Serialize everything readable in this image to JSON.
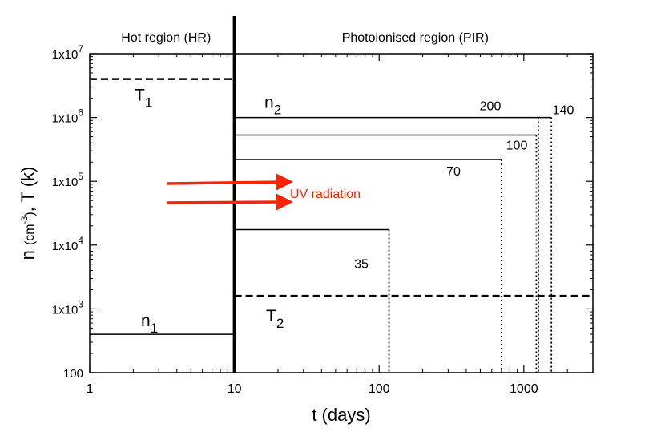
{
  "chart_data": {
    "type": "line",
    "x_scale": "log",
    "y_scale": "log",
    "xlim": [
      1,
      3000
    ],
    "ylim": [
      100,
      10000000
    ],
    "xlabel": "t (days)",
    "ylabel": {
      "pre": "n ",
      "unit_open": "(cm",
      "unit_exp": "-3",
      "unit_close": ")",
      "post": ", T (k)"
    },
    "x_ticks": [
      {
        "value": 1,
        "label": "1"
      },
      {
        "value": 10,
        "label": "10"
      },
      {
        "value": 100,
        "label": "100"
      },
      {
        "value": 1000,
        "label": "1000"
      }
    ],
    "y_ticks": [
      {
        "value": 100,
        "base": "100",
        "exp": ""
      },
      {
        "value": 1000,
        "base": "1x10",
        "exp": "3"
      },
      {
        "value": 10000,
        "base": "1x10",
        "exp": "4"
      },
      {
        "value": 100000,
        "base": "1x10",
        "exp": "5"
      },
      {
        "value": 1000000,
        "base": "1x10",
        "exp": "6"
      },
      {
        "value": 10000000,
        "base": "1x10",
        "exp": "7"
      }
    ],
    "region_boundary_t": 10,
    "regions": [
      {
        "label": "Hot region (HR)"
      },
      {
        "label": "Photoionised region (PIR)"
      }
    ],
    "temperatures": [
      {
        "name": "T_1",
        "base": "T",
        "sub": "1",
        "value": 4000000,
        "t_start": 1,
        "t_end": 10
      },
      {
        "name": "T_2",
        "base": "T",
        "sub": "2",
        "value": 1600,
        "t_start": 10,
        "t_end": 3000
      }
    ],
    "n1": {
      "base": "n",
      "sub": "1",
      "value": 400,
      "t_start": 1,
      "t_end": 10
    },
    "n2_label": {
      "base": "n",
      "sub": "2"
    },
    "n2_series": [
      {
        "label": "200",
        "value": 1000000,
        "t_end": 1260
      },
      {
        "label": "140",
        "value": 1000000,
        "t_end": 1550
      },
      {
        "label": "100",
        "value": 530000,
        "t_end": 1220
      },
      {
        "label": "70",
        "value": 220000,
        "t_end": 700
      },
      {
        "label": "35",
        "value": 17500,
        "t_end": 117
      }
    ],
    "annotation": {
      "text": "UV radiation",
      "color": "#ff2200"
    }
  }
}
